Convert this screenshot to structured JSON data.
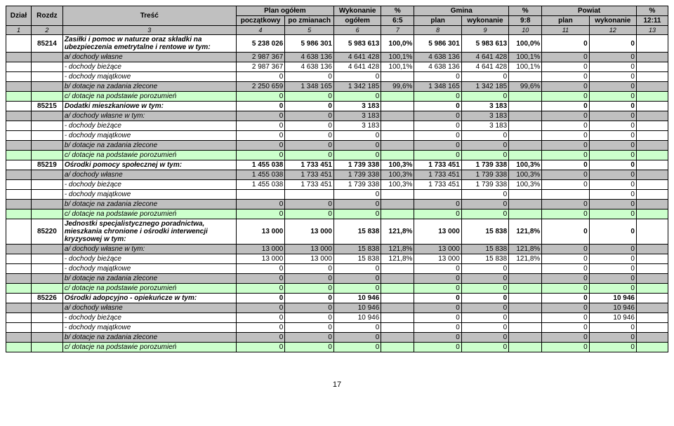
{
  "columns": {
    "c1": "Dział",
    "c2": "Rozdz",
    "c3": "Treść",
    "c4_group": "Plan ogółem",
    "c4": "początkowy",
    "c5": "po zmianach",
    "c6_group": "Wykonanie",
    "c6": "ogółem",
    "c7": "%",
    "c7sub": "6:5",
    "c8_group": "Gmina",
    "c8": "plan",
    "c9": "wykonanie",
    "c10": "%",
    "c10sub": "9:8",
    "c11_group": "Powiat",
    "c11": "plan",
    "c12": "wykonanie",
    "c13": "%",
    "c13sub": "12:11",
    "n1": "1",
    "n2": "2",
    "n3": "3",
    "n4": "4",
    "n5": "5",
    "n6": "6",
    "n7": "7",
    "n8": "8",
    "n9": "9",
    "n10": "10",
    "n11": "11",
    "n12": "12",
    "n13": "13"
  },
  "rows": [
    {
      "style": "bold",
      "c2": "85214",
      "desc": "Zasiłki i pomoc w naturze oraz składki na ubezpieczenia emetrytalne i rentowe w tym:",
      "v": [
        "5 238 026",
        "5 986 301",
        "5 983 613",
        "100,0%",
        "5 986 301",
        "5 983 613",
        "100,0%",
        "0",
        "0",
        ""
      ]
    },
    {
      "style": "fill",
      "desc": "a/ dochody własne",
      "v": [
        "2 987 367",
        "4 638 136",
        "4 641 428",
        "100,1%",
        "4 638 136",
        "4 641 428",
        "100,1%",
        "0",
        "0",
        ""
      ]
    },
    {
      "desc": "- dochody bieżące",
      "v": [
        "2 987 367",
        "4 638 136",
        "4 641 428",
        "100,1%",
        "4 638 136",
        "4 641 428",
        "100,1%",
        "0",
        "0",
        ""
      ]
    },
    {
      "desc": "- dochody majątkowe",
      "v": [
        "0",
        "0",
        "0",
        "",
        "0",
        "0",
        "",
        "0",
        "0",
        ""
      ]
    },
    {
      "style": "fill",
      "desc": "b/ dotacje na zadania zlecone",
      "v": [
        "2 250 659",
        "1 348 165",
        "1 342 185",
        "99,6%",
        "1 348 165",
        "1 342 185",
        "99,6%",
        "0",
        "0",
        ""
      ]
    },
    {
      "style": "grn",
      "desc": "c/ dotacje na podstawie porozumień",
      "v": [
        "0",
        "0",
        "0",
        "",
        "0",
        "0",
        "",
        "0",
        "0",
        ""
      ]
    },
    {
      "style": "bold",
      "c2": "85215",
      "desc": "Dodatki mieszkaniowe w tym:",
      "v": [
        "0",
        "0",
        "3 183",
        "",
        "0",
        "3 183",
        "",
        "0",
        "0",
        ""
      ]
    },
    {
      "style": "fill",
      "desc": "a/ dochody własne w tym:",
      "v": [
        "0",
        "0",
        "3 183",
        "",
        "0",
        "3 183",
        "",
        "0",
        "0",
        ""
      ]
    },
    {
      "desc": "- dochody bieżące",
      "v": [
        "0",
        "0",
        "3 183",
        "",
        "0",
        "3 183",
        "",
        "0",
        "0",
        ""
      ]
    },
    {
      "desc": "- dochody majątkowe",
      "v": [
        "0",
        "0",
        "0",
        "",
        "0",
        "0",
        "",
        "0",
        "0",
        ""
      ]
    },
    {
      "style": "fill",
      "desc": "b/ dotacje na zadania zlecone",
      "v": [
        "0",
        "0",
        "0",
        "",
        "0",
        "0",
        "",
        "0",
        "0",
        ""
      ]
    },
    {
      "style": "grn",
      "desc": "c/ dotacje na podstawie porozumień",
      "v": [
        "0",
        "0",
        "0",
        "",
        "0",
        "0",
        "",
        "0",
        "0",
        ""
      ]
    },
    {
      "style": "bold",
      "c2": "85219",
      "desc": "Ośrodki pomocy społecznej w tym:",
      "v": [
        "1 455 038",
        "1 733 451",
        "1 739 338",
        "100,3%",
        "1 733 451",
        "1 739 338",
        "100,3%",
        "0",
        "0",
        ""
      ]
    },
    {
      "style": "fill",
      "desc": "a/ dochody własne",
      "v": [
        "1 455 038",
        "1 733 451",
        "1 739 338",
        "100,3%",
        "1 733 451",
        "1 739 338",
        "100,3%",
        "0",
        "0",
        ""
      ]
    },
    {
      "desc": "- dochody bieżące",
      "v": [
        "1 455 038",
        "1 733 451",
        "1 739 338",
        "100,3%",
        "1 733 451",
        "1 739 338",
        "100,3%",
        "0",
        "0",
        ""
      ]
    },
    {
      "desc": "- dochody majątkowe",
      "v": [
        "",
        "",
        "0",
        "",
        "",
        "0",
        "",
        "",
        "0",
        ""
      ]
    },
    {
      "style": "fill",
      "desc": "b/ dotacje na zadania zlecone",
      "v": [
        "0",
        "0",
        "0",
        "",
        "0",
        "0",
        "",
        "0",
        "0",
        ""
      ]
    },
    {
      "style": "grn",
      "desc": "c/ dotacje na podstawie porozumień",
      "v": [
        "0",
        "0",
        "0",
        "",
        "0",
        "0",
        "",
        "0",
        "0",
        ""
      ]
    },
    {
      "style": "bold",
      "c2": "85220",
      "desc": "Jednostki specjalistycznego poradnictwa, mieszkania chronione i ośrodki interwencji kryzysowej w tym:",
      "v": [
        "13 000",
        "13 000",
        "15 838",
        "121,8%",
        "13 000",
        "15 838",
        "121,8%",
        "0",
        "0",
        ""
      ]
    },
    {
      "style": "fill",
      "desc": "a/ dochody własne w tym:",
      "v": [
        "13 000",
        "13 000",
        "15 838",
        "121,8%",
        "13 000",
        "15 838",
        "121,8%",
        "0",
        "0",
        ""
      ]
    },
    {
      "desc": "- dochody bieżące",
      "v": [
        "13 000",
        "13 000",
        "15 838",
        "121,8%",
        "13 000",
        "15 838",
        "121,8%",
        "0",
        "0",
        ""
      ]
    },
    {
      "desc": "- dochody majątkowe",
      "v": [
        "0",
        "0",
        "0",
        "",
        "0",
        "0",
        "",
        "0",
        "0",
        ""
      ]
    },
    {
      "style": "fill",
      "desc": "b/ dotacje na zadania zlecone",
      "v": [
        "0",
        "0",
        "0",
        "",
        "0",
        "0",
        "",
        "0",
        "0",
        ""
      ]
    },
    {
      "style": "grn",
      "desc": "c/ dotacje na podstawie porozumień",
      "v": [
        "0",
        "0",
        "0",
        "",
        "0",
        "0",
        "",
        "0",
        "0",
        ""
      ]
    },
    {
      "style": "bold",
      "c2": "85226",
      "desc": "Ośrodki adopcyjno - opiekuńcze w tym:",
      "v": [
        "0",
        "0",
        "10 946",
        "",
        "0",
        "0",
        "",
        "0",
        "10 946",
        ""
      ]
    },
    {
      "style": "fill",
      "desc": "a/ dochody własne",
      "v": [
        "0",
        "0",
        "10 946",
        "",
        "0",
        "0",
        "",
        "0",
        "10 946",
        ""
      ]
    },
    {
      "desc": "- dochody bieżące",
      "v": [
        "0",
        "0",
        "10 946",
        "",
        "0",
        "0",
        "",
        "0",
        "10 946",
        ""
      ]
    },
    {
      "desc": "- dochody majątkowe",
      "v": [
        "0",
        "0",
        "0",
        "",
        "0",
        "0",
        "",
        "0",
        "0",
        ""
      ]
    },
    {
      "style": "fill",
      "desc": "b/ dotacje na zadania zlecone",
      "v": [
        "0",
        "0",
        "0",
        "",
        "0",
        "0",
        "",
        "0",
        "0",
        ""
      ]
    },
    {
      "style": "grn",
      "desc": "c/ dotacje na podstawie porozumień",
      "v": [
        "0",
        "0",
        "0",
        "",
        "0",
        "0",
        "",
        "0",
        "0",
        ""
      ]
    }
  ],
  "page": "17",
  "widths": {
    "c1": 32,
    "c2": 40,
    "c3": 220,
    "c4": 62,
    "c5": 62,
    "c6": 60,
    "c7": 42,
    "c8": 60,
    "c9": 60,
    "c10": 42,
    "c11": 60,
    "c12": 60,
    "c13": 40
  },
  "colors": {
    "header_bg": "#c0c0c0",
    "green_bg": "#ccffcc",
    "border": "#000000",
    "page_bg": "#ffffff"
  }
}
